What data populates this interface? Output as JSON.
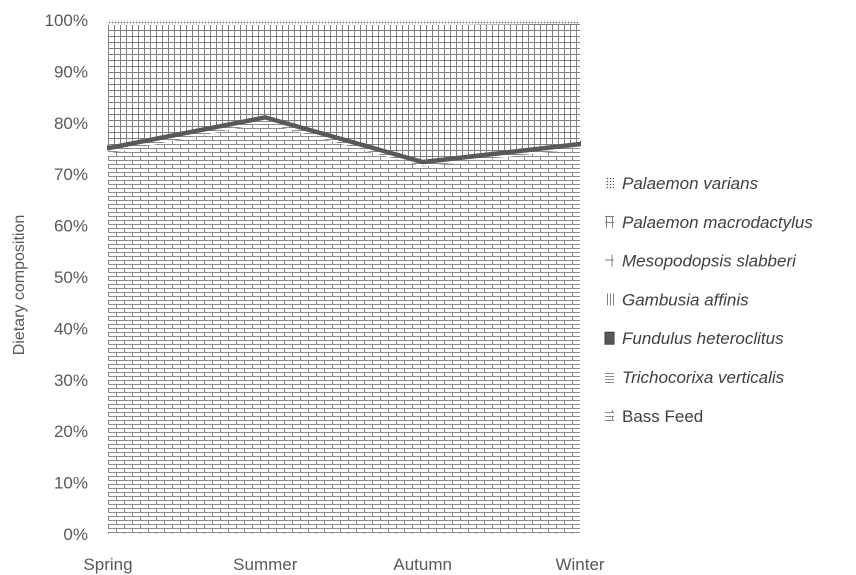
{
  "chart_data": {
    "type": "area",
    "stacked": "percent",
    "categories": [
      "Spring",
      "Summer",
      "Autumn",
      "Winter"
    ],
    "series": [
      {
        "name": "Bass Feed",
        "pattern": "brick",
        "values": [
          74,
          80,
          71.5,
          75
        ]
      },
      {
        "name": "Trichocorixa verticalis",
        "pattern": "horizontal-lines",
        "values": [
          0.8,
          0.8,
          0.6,
          0.6
        ]
      },
      {
        "name": "Fundulus heteroclitus",
        "pattern": "solid-dark",
        "values": [
          0.7,
          0.7,
          0.7,
          0.7
        ]
      },
      {
        "name": "Gambusia affinis",
        "pattern": "vertical-lines",
        "values": [
          0,
          0,
          0,
          0
        ]
      },
      {
        "name": "Mesopodopsis slabberi",
        "pattern": "cross",
        "values": [
          0,
          0,
          0,
          0
        ]
      },
      {
        "name": "Palaemon macrodactylus",
        "pattern": "grid",
        "values": [
          23.5,
          17.5,
          26.2,
          23.0
        ]
      },
      {
        "name": "Palaemon varians",
        "pattern": "dotted",
        "values": [
          1.0,
          1.0,
          1.0,
          0.7
        ]
      }
    ],
    "ylabel": "Dietary composition",
    "ylim": [
      0,
      100
    ],
    "yticks": [
      "0%",
      "10%",
      "20%",
      "30%",
      "40%",
      "50%",
      "60%",
      "70%",
      "80%",
      "90%",
      "100%"
    ],
    "legend_position": "right",
    "legend_order": [
      "Palaemon varians",
      "Palaemon macrodactylus",
      "Mesopodopsis slabberi",
      "Gambusia affinis",
      "Fundulus heteroclitus",
      "Trichocorixa verticalis",
      "Bass Feed"
    ],
    "grid": false,
    "colors": {
      "line": "#595959",
      "pattern": "#7f7f7f",
      "text": "#595959",
      "legend_text": "#404040"
    }
  }
}
